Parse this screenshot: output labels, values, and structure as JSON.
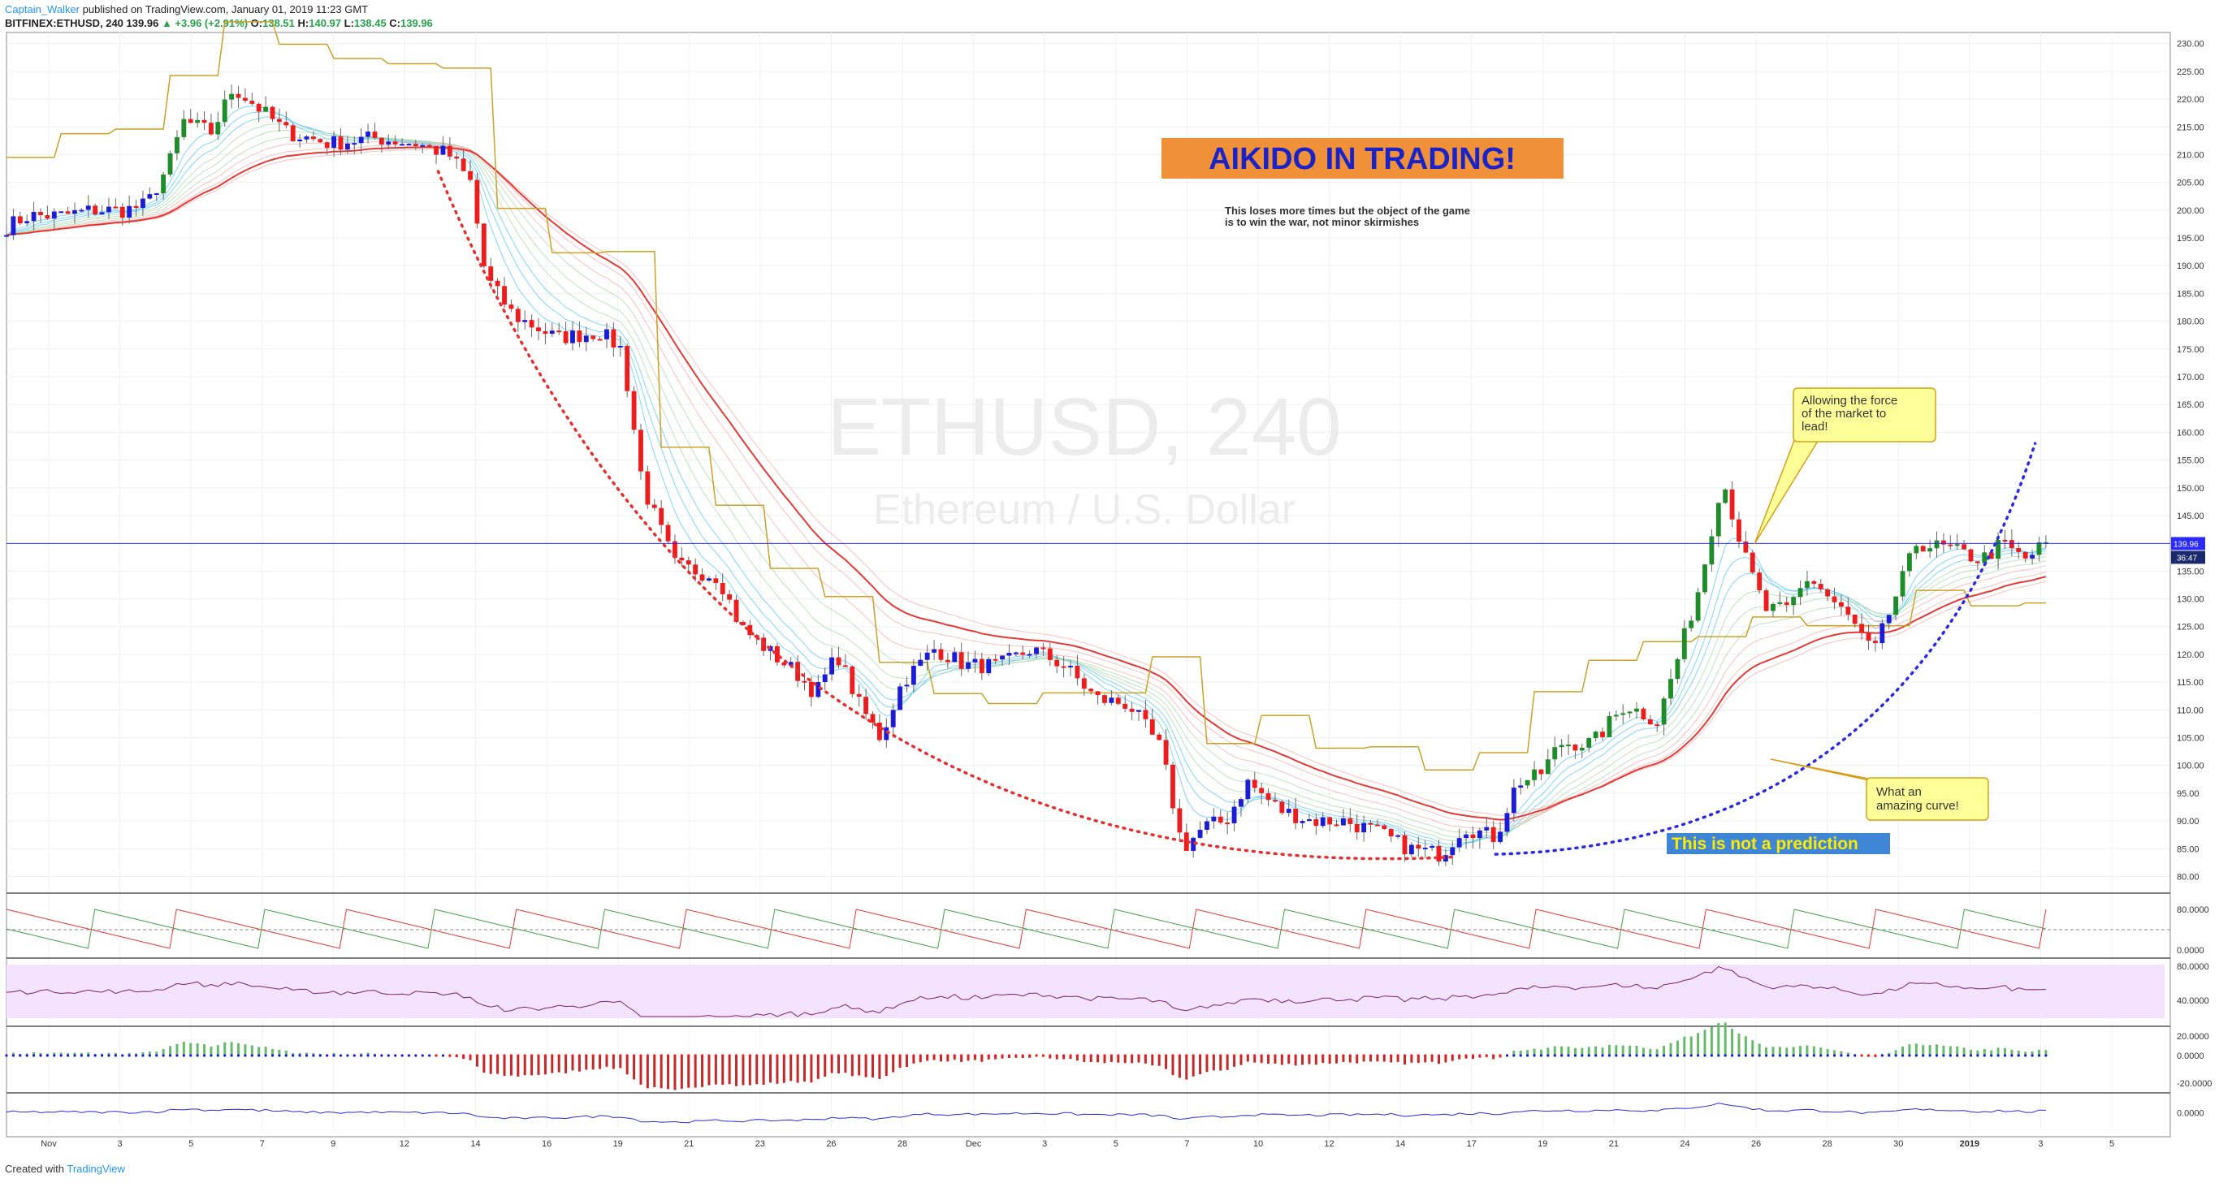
{
  "header": {
    "author": "Captain_Walker",
    "published": "published on TradingView.com, January 01, 2019 11:23 GMT",
    "symbol": "BITFINEX:ETHUSD, 240",
    "last": "139.96",
    "change": "▲ +3.96 (+2.91%)",
    "open_label": "O:",
    "open": "138.51",
    "high_label": "H:",
    "high": "140.97",
    "low_label": "L:",
    "low": "138.45",
    "close_label": "C:",
    "close": "139.96"
  },
  "watermark": {
    "symbol": "ETHUSD, 240",
    "name": "Ethereum / U.S. Dollar"
  },
  "annotations": {
    "title": "AIKIDO IN TRADING!",
    "subtitle_line1": "This loses more times but the object of the game",
    "subtitle_line2": "is to win the war, not minor skirmishes",
    "callout1": [
      "Allowing the force",
      "of the market to",
      "lead!"
    ],
    "callout2": [
      "What an",
      "amazing curve!"
    ],
    "disclaimer": "This is not a prediction"
  },
  "price_badge": {
    "value": "139.96",
    "countdown": "36:47"
  },
  "footer": {
    "created": "Created with",
    "brand": "TradingView"
  },
  "colors": {
    "bull_green": "#1e8c28",
    "bull_blue": "#1c1cd8",
    "bear_red": "#ee1c1c",
    "ma_red": "#e53935",
    "ma_gold": "#c9a227",
    "title_bg": "#f0913a",
    "title_text": "#1a23c8",
    "callout_bg": "#ffff99",
    "disclaimer_bg": "#3f86d6",
    "disclaimer_text": "#ffeb00",
    "last_price": "#2b2bff",
    "rsi_band": "#f3e3ff"
  },
  "chart_data": {
    "type": "candlestick",
    "price_axis": {
      "ylim": [
        77,
        232
      ],
      "ticks": [
        "230.00",
        "225.00",
        "220.00",
        "215.00",
        "210.00",
        "205.00",
        "200.00",
        "195.00",
        "190.00",
        "185.00",
        "180.00",
        "175.00",
        "170.00",
        "165.00",
        "160.00",
        "155.00",
        "150.00",
        "145.00",
        "140.00",
        "135.00",
        "130.00",
        "125.00",
        "120.00",
        "115.00",
        "110.00",
        "105.00",
        "100.00",
        "95.00",
        "90.00",
        "85.00",
        "80.00"
      ]
    },
    "x_labels": [
      "Nov",
      "3",
      "5",
      "7",
      "9",
      "12",
      "14",
      "16",
      "19",
      "21",
      "23",
      "26",
      "28",
      "Dec",
      "3",
      "5",
      "7",
      "10",
      "12",
      "14",
      "17",
      "19",
      "21",
      "24",
      "26",
      "28",
      "30",
      "2019",
      "3",
      "5"
    ],
    "price_path": [
      [
        0,
        197
      ],
      [
        0.01,
        199
      ],
      [
        0.025,
        199
      ],
      [
        0.04,
        200
      ],
      [
        0.055,
        200
      ],
      [
        0.065,
        201
      ],
      [
        0.075,
        208
      ],
      [
        0.082,
        216
      ],
      [
        0.095,
        214
      ],
      [
        0.105,
        222
      ],
      [
        0.115,
        219
      ],
      [
        0.13,
        214
      ],
      [
        0.15,
        212
      ],
      [
        0.17,
        213
      ],
      [
        0.19,
        212
      ],
      [
        0.205,
        210
      ],
      [
        0.215,
        205
      ],
      [
        0.222,
        188
      ],
      [
        0.235,
        181
      ],
      [
        0.255,
        177
      ],
      [
        0.275,
        178
      ],
      [
        0.285,
        175
      ],
      [
        0.295,
        150
      ],
      [
        0.31,
        136
      ],
      [
        0.33,
        134
      ],
      [
        0.34,
        125
      ],
      [
        0.355,
        120
      ],
      [
        0.365,
        117
      ],
      [
        0.375,
        113
      ],
      [
        0.385,
        120
      ],
      [
        0.395,
        111
      ],
      [
        0.405,
        105
      ],
      [
        0.415,
        115
      ],
      [
        0.43,
        121
      ],
      [
        0.445,
        118
      ],
      [
        0.46,
        118
      ],
      [
        0.475,
        121
      ],
      [
        0.49,
        118
      ],
      [
        0.505,
        112
      ],
      [
        0.52,
        111
      ],
      [
        0.535,
        103
      ],
      [
        0.545,
        85
      ],
      [
        0.555,
        89
      ],
      [
        0.565,
        90
      ],
      [
        0.575,
        97
      ],
      [
        0.59,
        92
      ],
      [
        0.605,
        90
      ],
      [
        0.62,
        90
      ],
      [
        0.635,
        88
      ],
      [
        0.65,
        85
      ],
      [
        0.665,
        84
      ],
      [
        0.675,
        89
      ],
      [
        0.69,
        87
      ],
      [
        0.7,
        97
      ],
      [
        0.71,
        98
      ],
      [
        0.72,
        104
      ],
      [
        0.735,
        104
      ],
      [
        0.75,
        111
      ],
      [
        0.765,
        108
      ],
      [
        0.775,
        120
      ],
      [
        0.785,
        133
      ],
      [
        0.795,
        152
      ],
      [
        0.805,
        138
      ],
      [
        0.815,
        128
      ],
      [
        0.825,
        128
      ],
      [
        0.835,
        134
      ],
      [
        0.845,
        130
      ],
      [
        0.855,
        126
      ],
      [
        0.865,
        120
      ],
      [
        0.875,
        130
      ],
      [
        0.885,
        140
      ],
      [
        0.9,
        139
      ],
      [
        0.915,
        137
      ],
      [
        0.925,
        140
      ],
      [
        0.935,
        137
      ],
      [
        0.945,
        140
      ]
    ],
    "oscillators": {
      "stoch_ticks": [
        "80.0000",
        "0.0000"
      ],
      "rsi_ticks": [
        "80.0000",
        "40.0000"
      ],
      "macd_ticks": [
        "20.0000",
        "0.0000",
        "-20.0000"
      ],
      "osc4_ticks": [
        "0.0000"
      ]
    }
  }
}
